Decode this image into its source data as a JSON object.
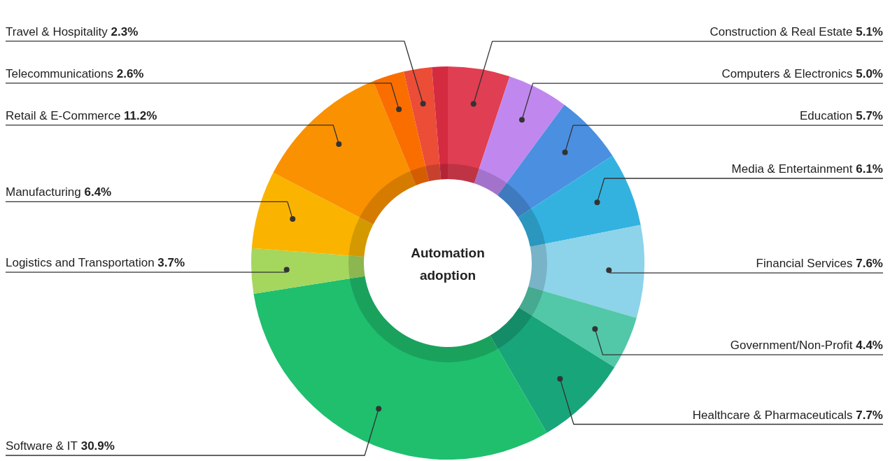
{
  "chart_data": {
    "type": "donut",
    "title": "Automation adoption",
    "categories": [
      "Construction & Real Estate",
      "Computers & Electronics",
      "Education",
      "Media & Entertainment",
      "Financial Services",
      "Government/Non-Profit",
      "Healthcare & Pharmaceuticals",
      "Software & IT",
      "Logistics and Transportation",
      "Manufacturing",
      "Retail & E-Commerce",
      "Telecommunications",
      "Travel & Hospitality",
      null
    ],
    "values": [
      5.1,
      5.0,
      5.7,
      6.1,
      7.6,
      4.4,
      7.7,
      30.9,
      3.7,
      6.4,
      11.2,
      2.6,
      2.3,
      1.3
    ],
    "value_labels": [
      "5.1%",
      "5.0%",
      "5.7%",
      "6.1%",
      "7.6%",
      "4.4%",
      "7.7%",
      "30.9%",
      "3.7%",
      "6.4%",
      "11.2%",
      "2.6%",
      "2.3%",
      null
    ],
    "colors": [
      "#e03e52",
      "#c088ef",
      "#4a8fe0",
      "#33b2e0",
      "#8dd3ea",
      "#52c8a8",
      "#18a57a",
      "#1fbf6e",
      "#a5d65e",
      "#fab400",
      "#fa9100",
      "#fa6e00",
      "#ec4d37",
      "#d42b40"
    ],
    "legend": false
  }
}
